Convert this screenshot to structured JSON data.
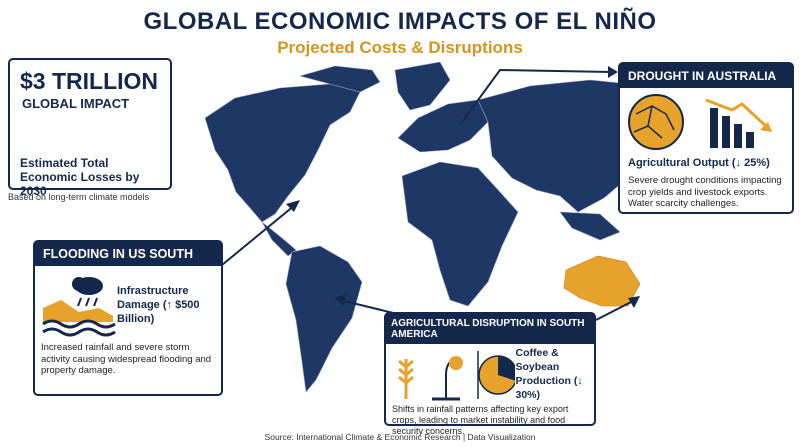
{
  "header": {
    "title": "GLOBAL ECONOMIC IMPACTS OF EL NIÑO",
    "subtitle": "Projected Costs & Disruptions"
  },
  "headline": {
    "value": "$3 TRILLION",
    "label": "GLOBAL IMPACT",
    "description": "Estimated Total Economic Losses by 2030",
    "note": "Based on long-term climate models"
  },
  "cards": [
    {
      "title": "DROUGHT IN AUSTRALIA",
      "metric": "Agricultural Output (↓ 25%)",
      "description": "Severe drought conditions impacting crop yields and livestock exports. Water scarcity challenges."
    },
    {
      "title": "FLOODING IN US SOUTH",
      "metric": "Infrastructure Damage (↑ $500 Billion)",
      "description": "Increased rainfall and severe storm activity causing widespread flooding and property damage."
    },
    {
      "title": "AGRICULTURAL DISRUPTION IN SOUTH AMERICA",
      "metric": "Coffee & Soybean Production (↓ 30%)",
      "description": "Shifts in rainfall patterns affecting key export crops, leading to market instability and food security concerns."
    }
  ],
  "footer": {
    "source": "Source: International Climate & Economic Research | Data Visualization"
  }
}
